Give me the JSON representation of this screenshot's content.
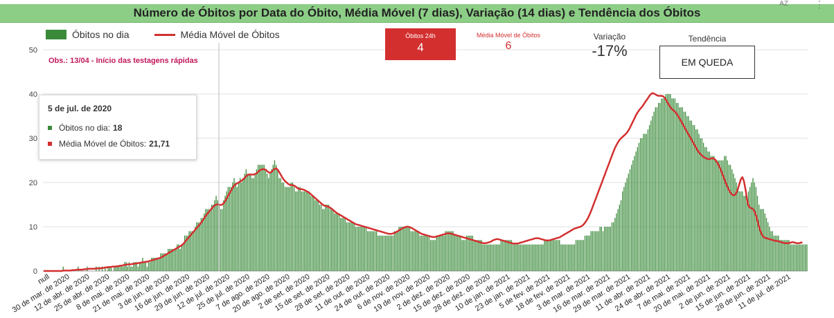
{
  "header": {
    "title": "Número de Óbitos por Data do Óbito, Média Móvel (7 dias), Variação (14 dias) e Tendência dos Óbitos"
  },
  "toolbar": {
    "sort_icon": "sort-az-icon",
    "sort_label": "AZ",
    "more_icon": "more-vertical-icon"
  },
  "legend": {
    "bar_label": "Óbitos no dia",
    "line_label": "Média Móvel de Óbitos"
  },
  "cards": {
    "deaths24h_label": "Óbitos 24h",
    "deaths24h_value": "4",
    "moving_avg_label": "Média Móvel de Óbitos",
    "moving_avg_value": "6",
    "variation_label": "Variação",
    "variation_value": "-17%",
    "trend_label": "Tendência",
    "trend_value": "EM QUEDA"
  },
  "note": "Obs.: 13/04 - Início das testagens rápidas",
  "tooltip": {
    "date": "5 de jul. de 2020",
    "bar_label": "Óbitos no dia:",
    "bar_value": "18",
    "line_label": "Média Móvel de Óbitos:",
    "line_value": "21,71"
  },
  "colors": {
    "bars": "#3a8a3a",
    "line": "#d32f2f",
    "title_bg": "#8cce86",
    "note": "#c2185b"
  },
  "chart_data": {
    "type": "bar",
    "title": "Número de Óbitos por Data do Óbito, Média Móvel (7 dias), Variação (14 dias) e Tendência dos Óbitos",
    "xlabel": "",
    "ylabel": "",
    "ylim": [
      0,
      50
    ],
    "yticks": [
      0,
      10,
      20,
      30,
      40,
      50
    ],
    "grid": true,
    "legend_position": "top-left",
    "xtick_labels": [
      "null",
      "30 de mar. de 2020",
      "12 de abr. de 2020",
      "25 de abr. de 2020",
      "8 de mai. de 2020",
      "21 de mai. de 2020",
      "3 de jun. de 2020",
      "16 de jun. de 2020",
      "29 de jun. de 2020",
      "12 de jul. de 2020",
      "25 de jul. de 2020",
      "7 de ago. de 2020",
      "20 de ago. de 2020",
      "2 de set. de 2020",
      "15 de set. de 2020",
      "28 de set. de 2020",
      "11 de out. de 2020",
      "24 de out. de 2020",
      "6 de nov. de 2020",
      "19 de nov. de 2020",
      "2 de dez. de 2020",
      "15 de dez. de 2020",
      "28 de dez. de 2020",
      "10 de jan. de 2021",
      "23 de jan. de 2021",
      "5 de fev. de 2021",
      "18 de fev. de 2021",
      "3 de mar. de 2021",
      "16 de mar. de 2021",
      "29 de mar. de 2021",
      "11 de abr. de 2021",
      "24 de abr. de 2021",
      "7 de mai. de 2021",
      "20 de mai. de 2021",
      "2 de jun. de 2021",
      "15 de jun. de 2021",
      "28 de jun. de 2021",
      "11 de jul. de 2021"
    ],
    "series": [
      {
        "name": "Óbitos no dia",
        "type": "bar",
        "values": [
          0,
          0,
          0,
          0,
          0,
          0,
          0,
          0,
          0,
          0,
          0,
          0,
          0,
          1,
          0,
          0,
          0,
          0,
          0,
          0,
          0,
          0,
          0,
          1,
          0,
          0,
          0,
          0,
          0,
          1,
          0,
          0,
          0,
          0,
          0,
          1,
          0,
          1,
          0,
          1,
          0,
          1,
          0,
          1,
          1,
          1,
          0,
          1,
          1,
          1,
          1,
          1,
          1,
          1,
          2,
          2,
          1,
          2,
          1,
          1,
          2,
          2,
          2,
          1,
          2,
          2,
          3,
          2,
          2,
          1,
          2,
          2,
          3,
          3,
          3,
          3,
          3,
          3,
          4,
          4,
          4,
          4,
          4,
          5,
          5,
          5,
          5,
          5,
          5,
          6,
          6,
          5,
          6,
          6,
          8,
          8,
          8,
          9,
          9,
          9,
          9,
          10,
          11,
          11,
          11,
          12,
          12,
          13,
          14,
          14,
          14,
          14,
          15,
          15,
          16,
          17,
          16,
          15,
          14,
          14,
          16,
          17,
          18,
          19,
          19,
          19,
          20,
          21,
          20,
          19,
          20,
          21,
          20,
          21,
          22,
          23,
          22,
          22,
          22,
          21,
          21,
          22,
          23,
          24,
          24,
          24,
          24,
          24,
          23,
          22,
          21,
          22,
          23,
          24,
          25,
          24,
          23,
          21,
          21,
          20,
          20,
          19,
          19,
          19,
          19,
          20,
          20,
          19,
          18,
          18,
          19,
          19,
          18,
          18,
          18,
          18,
          18,
          18,
          17,
          17,
          17,
          16,
          16,
          16,
          15,
          15,
          14,
          14,
          15,
          15,
          15,
          14,
          14,
          14,
          13,
          13,
          13,
          13,
          12,
          12,
          12,
          12,
          11,
          11,
          11,
          11,
          11,
          11,
          10,
          10,
          10,
          10,
          10,
          10,
          10,
          10,
          9,
          9,
          9,
          9,
          9,
          9,
          9,
          8,
          8,
          8,
          8,
          8,
          8,
          8,
          8,
          8,
          8,
          8,
          9,
          9,
          9,
          10,
          10,
          10,
          10,
          10,
          10,
          10,
          10,
          9,
          9,
          9,
          9,
          9,
          9,
          8,
          8,
          8,
          8,
          8,
          8,
          8,
          7,
          7,
          7,
          7,
          8,
          8,
          8,
          8,
          8,
          8,
          9,
          9,
          9,
          9,
          9,
          9,
          8,
          8,
          8,
          8,
          8,
          7,
          7,
          7,
          8,
          8,
          8,
          8,
          8,
          7,
          7,
          7,
          7,
          7,
          7,
          6,
          6,
          6,
          6,
          6,
          6,
          6,
          6,
          6,
          6,
          6,
          6,
          7,
          7,
          7,
          7,
          7,
          7,
          7,
          7,
          6,
          6,
          6,
          6,
          6,
          6,
          6,
          6,
          6,
          6,
          6,
          6,
          6,
          6,
          6,
          6,
          6,
          6,
          6,
          6,
          6,
          7,
          7,
          7,
          7,
          7,
          7,
          7,
          7,
          7,
          7,
          7,
          6,
          6,
          6,
          6,
          6,
          6,
          6,
          6,
          6,
          6,
          7,
          7,
          7,
          7,
          7,
          7,
          8,
          8,
          8,
          8,
          9,
          9,
          9,
          9,
          9,
          9,
          10,
          10,
          9,
          10,
          10,
          10,
          10,
          10,
          11,
          11,
          12,
          13,
          14,
          15,
          16,
          18,
          19,
          20,
          21,
          22,
          23,
          24,
          25,
          26,
          27,
          28,
          29,
          30,
          30,
          31,
          31,
          31,
          32,
          33,
          34,
          35,
          36,
          37,
          37,
          38,
          38,
          39,
          39,
          39,
          40,
          40,
          40,
          40,
          39,
          39,
          39,
          38,
          38,
          37,
          37,
          37,
          36,
          36,
          35,
          35,
          34,
          34,
          33,
          33,
          32,
          32,
          31,
          30,
          30,
          29,
          28,
          28,
          27,
          27,
          26,
          26,
          26,
          25,
          25,
          25,
          25,
          25,
          25,
          26,
          26,
          25,
          24,
          24,
          23,
          22,
          21,
          20,
          19,
          18,
          18,
          18,
          17,
          17,
          17,
          18,
          19,
          20,
          21,
          20,
          19,
          17,
          15,
          14,
          14,
          14,
          13,
          12,
          11,
          10,
          9,
          9,
          8,
          8,
          8,
          8,
          7,
          7,
          7,
          7,
          7,
          7,
          7,
          6,
          6,
          6,
          6,
          6,
          6,
          6,
          6,
          6,
          6,
          6,
          6
        ]
      },
      {
        "name": "Média Móvel de Óbitos",
        "type": "line",
        "values": [
          0,
          0,
          0,
          0,
          0,
          0,
          0,
          0,
          0,
          0,
          0,
          0,
          0,
          0.1,
          0.1,
          0.1,
          0.1,
          0.1,
          0.1,
          0.2,
          0.2,
          0.2,
          0.3,
          0.3,
          0.3,
          0.3,
          0.3,
          0.4,
          0.4,
          0.4,
          0.5,
          0.5,
          0.5,
          0.5,
          0.5,
          0.6,
          0.6,
          0.6,
          0.6,
          0.7,
          0.7,
          0.8,
          0.8,
          0.9,
          0.9,
          0.9,
          1,
          1,
          1,
          1.1,
          1.1,
          1.2,
          1.2,
          1.3,
          1.4,
          1.4,
          1.5,
          1.5,
          1.5,
          1.6,
          1.6,
          1.7,
          1.7,
          1.8,
          1.8,
          1.9,
          2,
          2,
          2.1,
          2.1,
          2.2,
          2.3,
          2.4,
          2.5,
          2.6,
          2.7,
          2.8,
          2.9,
          3,
          3.2,
          3.4,
          3.6,
          3.8,
          4,
          4.2,
          4.4,
          4.6,
          4.8,
          5,
          5.2,
          5.4,
          5.6,
          5.8,
          6.1,
          6.5,
          6.9,
          7.3,
          7.7,
          8.1,
          8.5,
          8.9,
          9.3,
          9.7,
          10.1,
          10.5,
          10.9,
          11.4,
          11.9,
          12.4,
          12.9,
          13.3,
          13.7,
          14.1,
          14.5,
          14.8,
          15,
          15.1,
          15,
          14.9,
          15,
          15.3,
          15.8,
          16.4,
          17,
          17.6,
          18.2,
          18.8,
          19.3,
          19.6,
          19.8,
          20,
          20.2,
          20.4,
          20.7,
          21,
          21.4,
          21.7,
          21.8,
          21.8,
          21.8,
          21.8,
          21.9,
          22.1,
          22.4,
          22.7,
          22.9,
          23,
          23,
          22.9,
          22.6,
          22.3,
          22.2,
          22.4,
          22.8,
          23.1,
          23.2,
          22.9,
          22.4,
          21.8,
          21.2,
          20.7,
          20.3,
          20,
          19.7,
          19.5,
          19.4,
          19.4,
          19.3,
          19.1,
          18.8,
          18.6,
          18.5,
          18.5,
          18.4,
          18.3,
          18.1,
          17.9,
          17.7,
          17.4,
          17.1,
          16.8,
          16.5,
          16.2,
          15.9,
          15.6,
          15.3,
          15,
          14.8,
          14.7,
          14.6,
          14.5,
          14.3,
          14.1,
          13.8,
          13.5,
          13.2,
          13,
          12.8,
          12.6,
          12.4,
          12.2,
          12,
          11.8,
          11.6,
          11.4,
          11.2,
          11,
          10.8,
          10.6,
          10.5,
          10.4,
          10.3,
          10.2,
          10.1,
          10,
          9.9,
          9.8,
          9.7,
          9.6,
          9.5,
          9.4,
          9.3,
          9.2,
          9.1,
          9,
          8.9,
          8.8,
          8.7,
          8.6,
          8.5,
          8.4,
          8.4,
          8.4,
          8.5,
          8.6,
          8.8,
          9,
          9.2,
          9.4,
          9.6,
          9.8,
          9.9,
          10,
          10,
          9.9,
          9.8,
          9.6,
          9.4,
          9.2,
          9,
          8.8,
          8.6,
          8.4,
          8.3,
          8.2,
          8.1,
          8,
          7.9,
          7.8,
          7.7,
          7.7,
          7.7,
          7.8,
          7.9,
          8,
          8.1,
          8.2,
          8.3,
          8.4,
          8.5,
          8.5,
          8.5,
          8.4,
          8.3,
          8.2,
          8.1,
          8,
          7.9,
          7.8,
          7.7,
          7.6,
          7.5,
          7.4,
          7.3,
          7.2,
          7.1,
          7,
          6.9,
          6.8,
          6.7,
          6.6,
          6.5,
          6.4,
          6.3,
          6.3,
          6.3,
          6.4,
          6.5,
          6.6,
          6.8,
          7,
          7.1,
          7.2,
          7.2,
          7.1,
          7,
          6.9,
          6.8,
          6.7,
          6.6,
          6.5,
          6.4,
          6.3,
          6.2,
          6.2,
          6.2,
          6.2,
          6.3,
          6.4,
          6.5,
          6.6,
          6.7,
          6.8,
          6.9,
          7,
          7.1,
          7.2,
          7.3,
          7.4,
          7.4,
          7.4,
          7.3,
          7.2,
          7.1,
          7,
          6.9,
          6.9,
          6.9,
          7,
          7.1,
          7.2,
          7.3,
          7.4,
          7.5,
          7.6,
          7.8,
          8,
          8.2,
          8.4,
          8.6,
          8.8,
          9,
          9.2,
          9.4,
          9.6,
          9.7,
          9.8,
          9.9,
          10,
          10.2,
          10.5,
          10.9,
          11.4,
          12,
          12.7,
          13.5,
          14.4,
          15.3,
          16.2,
          17.1,
          18,
          18.9,
          19.8,
          20.7,
          21.6,
          22.5,
          23.4,
          24.3,
          25.2,
          26.1,
          27,
          27.8,
          28.5,
          29.1,
          29.6,
          30,
          30.3,
          30.6,
          30.9,
          31.3,
          31.8,
          32.4,
          33.1,
          33.8,
          34.5,
          35.2,
          35.8,
          36.3,
          36.7,
          37.1,
          37.6,
          38.1,
          38.6,
          39.1,
          39.6,
          40,
          40.2,
          40.1,
          39.9,
          39.7,
          39.6,
          39.6,
          39.6,
          39.5,
          39.2,
          38.7,
          38.1,
          37.5,
          37,
          36.6,
          36.3,
          36,
          35.6,
          35.1,
          34.5,
          33.9,
          33.3,
          32.7,
          32.1,
          31.5,
          30.9,
          30.3,
          29.7,
          29.1,
          28.5,
          27.9,
          27.3,
          26.8,
          26.4,
          26.1,
          25.8,
          25.6,
          25.4,
          25.3,
          25.3,
          25.4,
          25.5,
          25.4,
          25.1,
          24.6,
          24,
          23.3,
          22.5,
          21.6,
          20.7,
          19.8,
          19,
          18.3,
          17.7,
          17.3,
          17.1,
          17.2,
          17.7,
          18.6,
          19.7,
          20.8,
          21.2,
          20.3,
          18.5,
          16.3,
          14.8,
          14.3,
          14.2,
          14,
          13.5,
          12.6,
          11.4,
          10.1,
          9,
          8.2,
          7.7,
          7.5,
          7.4,
          7.3,
          7.2,
          7.1,
          7,
          6.9,
          6.8,
          6.8,
          6.7,
          6.6,
          6.5,
          6.4,
          6.3,
          6.3,
          6.3,
          6.3,
          6.4,
          6.5,
          6.5,
          6.4,
          6.3,
          6.3,
          6.3,
          6.4,
          6.5
        ]
      }
    ],
    "annotation": "Obs.: 13/04 - Início das testagens rápidas",
    "tooltip_point": {
      "date": "5 de jul. de 2020",
      "bar_value": 18,
      "line_value": 21.71
    }
  }
}
